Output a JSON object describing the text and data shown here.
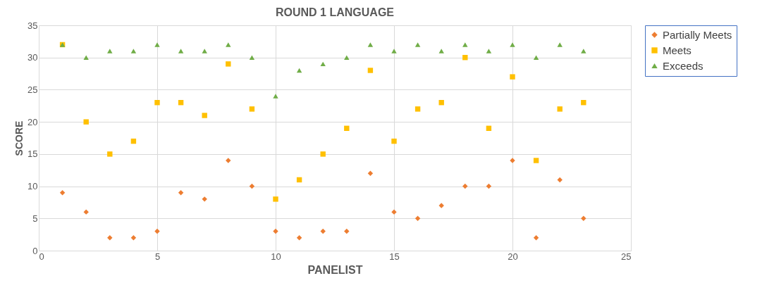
{
  "chart_data": {
    "type": "scatter",
    "title": "ROUND 1 LANGUAGE",
    "xlabel": "PANELIST",
    "ylabel": "SCORE",
    "x": [
      1,
      2,
      3,
      4,
      5,
      6,
      7,
      8,
      9,
      10,
      11,
      12,
      13,
      14,
      15,
      16,
      17,
      18,
      19,
      20,
      21,
      22,
      23
    ],
    "series": [
      {
        "name": "Partially Meets",
        "color": "#ed7d31",
        "marker": "diamond",
        "values": [
          9,
          6,
          2,
          2,
          3,
          9,
          8,
          14,
          10,
          3,
          2,
          3,
          3,
          12,
          6,
          5,
          7,
          10,
          10,
          14,
          2,
          11,
          5
        ]
      },
      {
        "name": "Meets",
        "color": "#ffc000",
        "marker": "square",
        "values": [
          32,
          20,
          15,
          17,
          23,
          23,
          21,
          29,
          22,
          8,
          11,
          15,
          19,
          28,
          17,
          22,
          23,
          30,
          19,
          27,
          14,
          22,
          23
        ]
      },
      {
        "name": "Exceeds",
        "color": "#70ad47",
        "marker": "triangle",
        "values": [
          32,
          30,
          31,
          31,
          32,
          31,
          31,
          32,
          30,
          24,
          28,
          29,
          30,
          32,
          31,
          32,
          31,
          32,
          31,
          32,
          30,
          32,
          31
        ]
      }
    ],
    "xlim": [
      0,
      25
    ],
    "xticks": [
      0,
      5,
      10,
      15,
      20,
      25
    ],
    "ylim": [
      0,
      35
    ],
    "yticks": [
      0,
      5,
      10,
      15,
      20,
      25,
      30,
      35
    ],
    "grid": true,
    "legend": "right"
  }
}
